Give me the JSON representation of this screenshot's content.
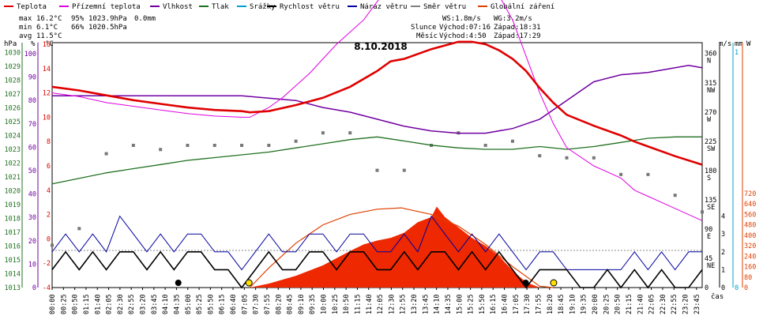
{
  "legend": [
    {
      "label": "Teplota",
      "color": "#e00000"
    },
    {
      "label": "Přízemní teplota",
      "color": "#e000e0"
    },
    {
      "label": "Vlhkost",
      "color": "#7000a0"
    },
    {
      "label": "Tlak",
      "color": "#207020"
    },
    {
      "label": "Srážky",
      "color": "#00a0d0"
    },
    {
      "label": "Rychlost větru",
      "color": "#000000"
    },
    {
      "label": "Náraz větru",
      "color": "#0000a0"
    },
    {
      "label": "Směr větru",
      "color": "#808080"
    },
    {
      "label": "Globální záření",
      "color": "#e04000"
    }
  ],
  "stats": {
    "max_label": "max",
    "max_temp": "16.2°C",
    "max_hum": "95%",
    "max_press": "1023.9hPa",
    "rain": "0.0mm",
    "min_label": "min",
    "min_temp": "6.1°C",
    "min_hum": "66%",
    "min_press": "1020.5hPa",
    "avg_label": "avg",
    "avg_temp": "11.5°C"
  },
  "info": {
    "ws": "WS:1.8m/s",
    "wg": "WG:3.2m/s",
    "sun_label": "Slunce",
    "sun_rise": "Východ:07:16",
    "sun_set": "Západ:18:31",
    "moon_label": "Měsíc",
    "moon_rise": "Východ:4:50",
    "moon_set": "Západ:17:29"
  },
  "chart_data": {
    "type": "line",
    "title": "8.10.2018",
    "x_unit_label": "čas",
    "axis_units": {
      "pressure": "hPa",
      "humidity": "%",
      "temperature": "°C",
      "wind": "m/s",
      "rain": "mm",
      "radiation": "W"
    },
    "x_ticks": [
      "00:00",
      "00:25",
      "00:50",
      "01:15",
      "01:40",
      "02:05",
      "02:30",
      "02:55",
      "03:20",
      "03:45",
      "04:10",
      "04:35",
      "05:00",
      "05:25",
      "05:50",
      "06:15",
      "06:40",
      "07:05",
      "07:30",
      "07:55",
      "08:20",
      "08:45",
      "09:10",
      "09:35",
      "10:00",
      "10:25",
      "10:50",
      "11:15",
      "11:40",
      "12:05",
      "12:30",
      "12:55",
      "13:20",
      "13:45",
      "14:10",
      "14:35",
      "15:00",
      "15:25",
      "15:50",
      "16:15",
      "16:40",
      "17:05",
      "17:30",
      "17:55",
      "18:20",
      "18:45",
      "19:10",
      "19:35",
      "20:00",
      "20:25",
      "20:50",
      "21:15",
      "21:40",
      "22:05",
      "22:30",
      "22:55",
      "23:20",
      "23:45"
    ],
    "axes": {
      "pressure_ticks": [
        "1013",
        "1014",
        "1015",
        "1016",
        "1017",
        "1018",
        "1019",
        "1020",
        "1021",
        "1022",
        "1023",
        "1024",
        "1025",
        "1026",
        "1027",
        "1028",
        "1029",
        "1030"
      ],
      "humidity_ticks": [
        "0",
        "10",
        "20",
        "30",
        "40",
        "50",
        "60",
        "70",
        "80",
        "90",
        "100"
      ],
      "temperature_ticks": [
        "-4",
        "-2",
        "0",
        "2",
        "4",
        "6",
        "8",
        "10",
        "12",
        "14",
        "16",
        "18",
        "20",
        "22"
      ],
      "direction_ticks": [
        "0",
        "45\nNE",
        "90\nE",
        "135\nSE",
        "180\nS",
        "225\nSW",
        "270\nW",
        "315\nNW",
        "360\nN"
      ],
      "wind_ticks": [
        "0",
        "1",
        "2",
        "3",
        "4"
      ],
      "rain_ticks": [
        "0",
        "1"
      ],
      "radiation_ticks": [
        "0",
        "80",
        "160",
        "240",
        "320",
        "400",
        "480",
        "560",
        "640",
        "720"
      ]
    },
    "ylim_temperature": [
      -4,
      22.7
    ],
    "series": [
      {
        "name": "Teplota",
        "color": "#e00000",
        "unit": "°C",
        "x": [
          0,
          1,
          2,
          3,
          4,
          5,
          6,
          7,
          7.3,
          8,
          9,
          10,
          11,
          12,
          12.5,
          13,
          14,
          15,
          15.5,
          16,
          16.5,
          17,
          17.5,
          18,
          18.5,
          19,
          20,
          21,
          21.5,
          22,
          23,
          24
        ],
        "values": [
          12.5,
          12.2,
          11.8,
          11.4,
          11.1,
          10.8,
          10.6,
          10.5,
          10.4,
          10.5,
          11,
          11.6,
          12.5,
          13.8,
          14.6,
          14.8,
          15.6,
          16.2,
          16.2,
          16.0,
          15.5,
          14.8,
          13.8,
          12.4,
          11.2,
          10.2,
          9.3,
          8.5,
          8.0,
          7.6,
          6.8,
          6.1
        ]
      },
      {
        "name": "Přízemní teplota",
        "color": "#e000e0",
        "unit": "°C",
        "x": [
          0,
          1,
          2,
          3,
          4,
          5,
          6,
          7,
          7.3,
          8,
          8.5,
          9,
          9.5,
          10,
          10.5,
          11,
          11.5,
          12,
          12.5,
          13,
          13.5,
          14,
          14.5,
          15,
          15.5,
          16,
          16.5,
          17,
          17.5,
          18,
          18.5,
          19,
          20,
          21,
          21.5,
          22,
          23,
          24
        ],
        "values": [
          12,
          11.7,
          11.2,
          10.9,
          10.6,
          10.3,
          10.1,
          10,
          10,
          10.8,
          11.6,
          12.6,
          13.6,
          14.8,
          16,
          17,
          18,
          19.5,
          21,
          22,
          22.5,
          21,
          22,
          23,
          23,
          22,
          20,
          18,
          15,
          12,
          9.5,
          7.5,
          6,
          5,
          4,
          3.5,
          2.5,
          1.5
        ]
      },
      {
        "name": "Vlhkost",
        "color": "#7000a0",
        "unit": "%",
        "x": [
          0,
          1,
          2,
          3,
          4,
          5,
          6,
          7,
          8,
          9,
          10,
          11,
          12,
          13,
          14,
          15,
          16,
          17,
          18,
          19,
          20,
          21,
          22,
          23,
          23.5,
          24
        ],
        "values": [
          82,
          82,
          82,
          82,
          82,
          82,
          82,
          82,
          81,
          80,
          77,
          75,
          72,
          69,
          67,
          66,
          66,
          68,
          72,
          80,
          88,
          91,
          92,
          94,
          95,
          94
        ]
      },
      {
        "name": "Tlak",
        "color": "#207020",
        "unit": "hPa",
        "x": [
          0,
          1,
          2,
          3,
          4,
          5,
          6,
          7,
          8,
          9,
          10,
          11,
          12,
          13,
          14,
          15,
          16,
          17,
          18,
          19,
          20,
          21,
          22,
          23,
          24
        ],
        "values": [
          1020.5,
          1020.9,
          1021.3,
          1021.6,
          1021.9,
          1022.2,
          1022.4,
          1022.6,
          1022.8,
          1023.1,
          1023.4,
          1023.7,
          1023.9,
          1023.6,
          1023.3,
          1023.1,
          1023.0,
          1023.0,
          1023.2,
          1023.0,
          1023.2,
          1023.5,
          1023.8,
          1023.9,
          1023.9
        ]
      },
      {
        "name": "Rychlost větru",
        "color": "#000000",
        "unit": "m/s",
        "x": [
          0,
          0.5,
          1,
          1.5,
          2,
          2.5,
          3,
          3.5,
          4,
          4.5,
          5,
          5.5,
          6,
          6.5,
          7,
          7.5,
          8,
          8.5,
          9,
          9.5,
          10,
          10.5,
          11,
          11.5,
          12,
          12.5,
          13,
          13.5,
          14,
          14.5,
          15,
          15.5,
          16,
          16.5,
          17,
          17.5,
          18,
          18.5,
          19,
          19.5,
          20,
          20.5,
          21,
          21.5,
          22,
          22.5,
          23,
          23.5,
          24
        ],
        "values": [
          1,
          2,
          1,
          2,
          1,
          2,
          2,
          1,
          2,
          1,
          2,
          2,
          1,
          1,
          0,
          1,
          2,
          1,
          1,
          2,
          2,
          1,
          2,
          2,
          1,
          1,
          2,
          1,
          2,
          2,
          1,
          2,
          1,
          2,
          1,
          0,
          1,
          1,
          1,
          0,
          0,
          1,
          0,
          1,
          0,
          1,
          0,
          0,
          1
        ]
      },
      {
        "name": "Náraz větru",
        "color": "#0000a0",
        "unit": "m/s",
        "x": [
          0,
          0.5,
          1,
          1.5,
          2,
          2.5,
          3,
          3.5,
          4,
          4.5,
          5,
          5.5,
          6,
          6.5,
          7,
          7.5,
          8,
          8.5,
          9,
          9.5,
          10,
          10.5,
          11,
          11.5,
          12,
          12.5,
          13,
          13.5,
          14,
          14.5,
          15,
          15.5,
          16,
          16.5,
          17,
          17.5,
          18,
          18.5,
          19,
          19.5,
          20,
          20.5,
          21,
          21.5,
          22,
          22.5,
          23,
          23.5,
          24
        ],
        "values": [
          2,
          3,
          2,
          3,
          2,
          4,
          3,
          2,
          3,
          2,
          3,
          3,
          2,
          2,
          1,
          2,
          3,
          2,
          2,
          3,
          3,
          2,
          3,
          3,
          2,
          2,
          3,
          2,
          4,
          3,
          2,
          3,
          2,
          3,
          2,
          1,
          2,
          2,
          1,
          1,
          1,
          1,
          1,
          2,
          1,
          2,
          1,
          2,
          2
        ]
      },
      {
        "name": "Směr větru",
        "color": "#808080",
        "unit": "°",
        "x": [
          0,
          1,
          2,
          3,
          4,
          5,
          6,
          7,
          8,
          9,
          10,
          11,
          12,
          13,
          14,
          15,
          16,
          17,
          18,
          19,
          20,
          21,
          22,
          23,
          24
        ],
        "values": [
          60,
          100,
          280,
          300,
          290,
          300,
          300,
          300,
          300,
          310,
          330,
          330,
          240,
          240,
          300,
          330,
          300,
          310,
          275,
          270,
          270,
          230,
          230,
          180,
          140
        ]
      },
      {
        "name": "Globální záření",
        "color": "#e04000",
        "unit": "W",
        "x": [
          7.3,
          8,
          9,
          10,
          11,
          11.5,
          12,
          12.5,
          13,
          13.5,
          14,
          14.2,
          14.5,
          15,
          15.5,
          16,
          16.5,
          17,
          17.5,
          18
        ],
        "values": [
          0,
          30,
          90,
          170,
          280,
          330,
          360,
          380,
          420,
          500,
          540,
          620,
          540,
          460,
          380,
          320,
          240,
          130,
          40,
          0
        ]
      },
      {
        "name": "Globální záření (teoretické)",
        "color": "#e04000",
        "unit": "W",
        "x": [
          7.3,
          8,
          9,
          10,
          11,
          12,
          12.9,
          13,
          14,
          15,
          16,
          17,
          18,
          18.5
        ],
        "values": [
          0,
          150,
          340,
          480,
          560,
          600,
          610,
          605,
          560,
          470,
          330,
          160,
          10,
          0
        ]
      }
    ]
  }
}
